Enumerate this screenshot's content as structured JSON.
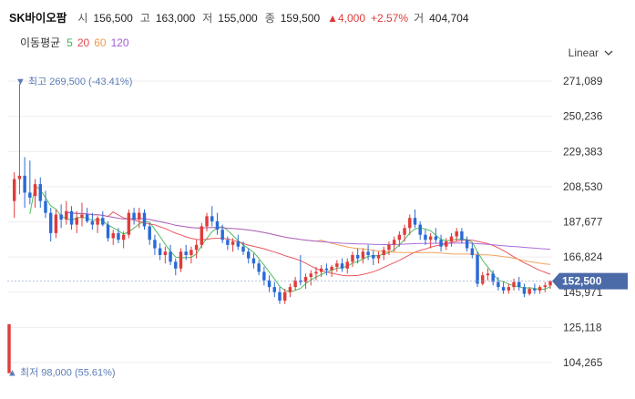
{
  "header": {
    "stock_name": "SK바이오팜",
    "open_label": "시",
    "open_value": "156,500",
    "high_label": "고",
    "high_value": "163,000",
    "low_label": "저",
    "low_value": "155,000",
    "close_label": "종",
    "close_value": "159,500",
    "change_value": "▲4,000",
    "change_percent": "+2.57%",
    "volume_label": "거",
    "volume_value": "404,704"
  },
  "moving_averages": {
    "title": "이동평균",
    "items": [
      {
        "period": "5",
        "color": "#3bb54a"
      },
      {
        "period": "20",
        "color": "#e8474f"
      },
      {
        "period": "60",
        "color": "#f29a4a"
      },
      {
        "period": "120",
        "color": "#a25ed6"
      }
    ]
  },
  "scale_selector": {
    "label": "Linear"
  },
  "colors": {
    "up": "#e03b3b",
    "down": "#2a6ad6",
    "price_tag": "#4a6aa8",
    "marker": "#5b7cb5"
  },
  "chart_data": {
    "type": "candlestick",
    "y_ticks": [
      271089,
      250236,
      229383,
      208530,
      187677,
      166824,
      145971,
      125118,
      104265
    ],
    "y_tick_labels": [
      "271,089",
      "250,236",
      "229,383",
      "208,530",
      "187,677",
      "166,824",
      "145,971",
      "125,118",
      "104,265"
    ],
    "ylim": [
      96000,
      276000
    ],
    "current_price": 152500,
    "current_price_label": "152,500",
    "max_marker": {
      "value": 269500,
      "label": "▼ 최고 269,500 (-43.41%)"
    },
    "min_marker": {
      "value": 98000,
      "label": "최저 98,000 (55.61%)"
    },
    "candles": [
      [
        98000,
        127000,
        98000,
        127000
      ],
      [
        200000,
        217000,
        190000,
        213000
      ],
      [
        213000,
        269500,
        204000,
        215000
      ],
      [
        215000,
        226000,
        196000,
        205000
      ],
      [
        205000,
        224000,
        198000,
        202000
      ],
      [
        203000,
        213000,
        196000,
        210000
      ],
      [
        210000,
        214000,
        196000,
        200000
      ],
      [
        200000,
        206000,
        190000,
        193000
      ],
      [
        193000,
        196000,
        176000,
        181000
      ],
      [
        181000,
        195000,
        178000,
        192000
      ],
      [
        192000,
        198000,
        184000,
        189000
      ],
      [
        189000,
        200000,
        186000,
        194000
      ],
      [
        194000,
        197000,
        183000,
        186000
      ],
      [
        186000,
        194000,
        181000,
        190000
      ],
      [
        190000,
        199000,
        185000,
        192000
      ],
      [
        192000,
        196000,
        187000,
        188000
      ],
      [
        188000,
        193000,
        183000,
        186000
      ],
      [
        186000,
        191000,
        181000,
        190000
      ],
      [
        190000,
        194000,
        185000,
        186000
      ],
      [
        186000,
        188000,
        176000,
        178000
      ],
      [
        178000,
        183000,
        174000,
        181000
      ],
      [
        181000,
        184000,
        175000,
        177000
      ],
      [
        177000,
        182000,
        172000,
        180000
      ],
      [
        180000,
        195000,
        178000,
        193000
      ],
      [
        193000,
        196000,
        186000,
        189000
      ],
      [
        189000,
        196000,
        184000,
        193000
      ],
      [
        193000,
        195000,
        183000,
        185000
      ],
      [
        185000,
        187000,
        174000,
        177000
      ],
      [
        177000,
        180000,
        168000,
        172000
      ],
      [
        172000,
        175000,
        165000,
        168000
      ],
      [
        168000,
        173000,
        163000,
        170000
      ],
      [
        170000,
        174000,
        162000,
        164000
      ],
      [
        164000,
        166000,
        156000,
        160000
      ],
      [
        160000,
        172000,
        158000,
        170000
      ],
      [
        170000,
        174000,
        165000,
        168000
      ],
      [
        168000,
        173000,
        163000,
        171000
      ],
      [
        171000,
        177000,
        166000,
        174000
      ],
      [
        174000,
        187000,
        172000,
        185000
      ],
      [
        185000,
        193000,
        182000,
        191000
      ],
      [
        191000,
        197000,
        185000,
        188000
      ],
      [
        188000,
        193000,
        180000,
        183000
      ],
      [
        183000,
        186000,
        175000,
        177000
      ],
      [
        177000,
        179000,
        171000,
        174000
      ],
      [
        174000,
        178000,
        170000,
        176000
      ],
      [
        176000,
        180000,
        171000,
        173000
      ],
      [
        173000,
        176000,
        168000,
        170000
      ],
      [
        170000,
        172000,
        163000,
        166000
      ],
      [
        166000,
        169000,
        160000,
        163000
      ],
      [
        163000,
        165000,
        156000,
        158000
      ],
      [
        158000,
        161000,
        150000,
        153000
      ],
      [
        153000,
        156000,
        146000,
        149000
      ],
      [
        149000,
        152000,
        143000,
        146000
      ],
      [
        146000,
        149000,
        139000,
        141000
      ],
      [
        141000,
        148000,
        139000,
        146000
      ],
      [
        146000,
        151000,
        143000,
        149000
      ],
      [
        149000,
        155000,
        147000,
        153000
      ],
      [
        153000,
        168000,
        150000,
        152000
      ],
      [
        152000,
        157000,
        148000,
        155000
      ],
      [
        155000,
        159000,
        150000,
        157000
      ],
      [
        157000,
        161000,
        153000,
        158000
      ],
      [
        158000,
        162000,
        155000,
        160000
      ],
      [
        160000,
        163000,
        156000,
        159000
      ],
      [
        159000,
        162000,
        155000,
        161000
      ],
      [
        161000,
        165000,
        158000,
        163000
      ],
      [
        163000,
        166000,
        158000,
        160000
      ],
      [
        160000,
        166000,
        157000,
        164000
      ],
      [
        164000,
        170000,
        161000,
        168000
      ],
      [
        168000,
        172000,
        163000,
        166000
      ],
      [
        166000,
        172000,
        163000,
        170000
      ],
      [
        170000,
        174000,
        165000,
        168000
      ],
      [
        168000,
        171000,
        162000,
        166000
      ],
      [
        166000,
        170000,
        163000,
        168000
      ],
      [
        168000,
        173000,
        165000,
        171000
      ],
      [
        171000,
        176000,
        168000,
        174000
      ],
      [
        174000,
        179000,
        170000,
        177000
      ],
      [
        177000,
        182000,
        173000,
        180000
      ],
      [
        180000,
        186000,
        176000,
        184000
      ],
      [
        184000,
        192000,
        180000,
        190000
      ],
      [
        190000,
        195000,
        184000,
        186000
      ],
      [
        186000,
        188000,
        177000,
        180000
      ],
      [
        180000,
        183000,
        174000,
        177000
      ],
      [
        177000,
        181000,
        172000,
        179000
      ],
      [
        179000,
        184000,
        175000,
        177000
      ],
      [
        177000,
        180000,
        170000,
        173000
      ],
      [
        173000,
        178000,
        171000,
        176000
      ],
      [
        176000,
        181000,
        173000,
        179000
      ],
      [
        179000,
        184000,
        176000,
        182000
      ],
      [
        182000,
        184000,
        175000,
        177000
      ],
      [
        177000,
        179000,
        170000,
        172000
      ],
      [
        172000,
        175000,
        166000,
        168000
      ],
      [
        168000,
        170000,
        149000,
        151000
      ],
      [
        151000,
        158000,
        150000,
        156000
      ],
      [
        156000,
        160000,
        153000,
        157000
      ],
      [
        157000,
        159000,
        150000,
        152000
      ],
      [
        152000,
        155000,
        147000,
        149000
      ],
      [
        149000,
        152000,
        145000,
        147000
      ],
      [
        147000,
        151000,
        145000,
        149000
      ],
      [
        149000,
        154000,
        147000,
        152000
      ],
      [
        152000,
        155000,
        147000,
        149000
      ],
      [
        149000,
        151000,
        143000,
        145000
      ],
      [
        145000,
        149000,
        144000,
        148000
      ],
      [
        148000,
        151000,
        145000,
        147000
      ],
      [
        147000,
        150000,
        145000,
        149000
      ],
      [
        149000,
        152000,
        146000,
        150000
      ],
      [
        150000,
        153000,
        148000,
        152500
      ]
    ]
  }
}
